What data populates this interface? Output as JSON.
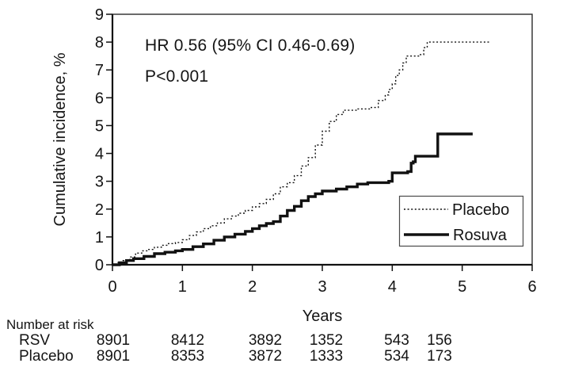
{
  "chart_data": {
    "type": "line",
    "subtype": "kaplan-meier-cumulative-incidence",
    "xlabel": "Years",
    "ylabel": "Cumulative incidence, %",
    "xlim": [
      0,
      6
    ],
    "ylim": [
      0,
      9
    ],
    "x_ticks": [
      0,
      1,
      2,
      3,
      4,
      5,
      6
    ],
    "y_ticks": [
      0,
      1,
      2,
      3,
      4,
      5,
      6,
      7,
      8,
      9
    ],
    "grid": false,
    "annotations": [
      "HR 0.56 (95% CI 0.46-0.69)",
      "P<0.001"
    ],
    "legend": {
      "position": "lower right",
      "entries": [
        {
          "label": "Placebo",
          "style": "dotted"
        },
        {
          "label": "Rosuva",
          "style": "solid"
        }
      ]
    },
    "series": [
      {
        "name": "Placebo",
        "style": "dotted",
        "step": true,
        "points": [
          [
            0,
            0
          ],
          [
            0.07,
            0.08
          ],
          [
            0.15,
            0.15
          ],
          [
            0.25,
            0.28
          ],
          [
            0.33,
            0.42
          ],
          [
            0.42,
            0.5
          ],
          [
            0.5,
            0.55
          ],
          [
            0.6,
            0.63
          ],
          [
            0.7,
            0.7
          ],
          [
            0.8,
            0.76
          ],
          [
            0.9,
            0.8
          ],
          [
            1.0,
            0.9
          ],
          [
            1.1,
            1.05
          ],
          [
            1.2,
            1.18
          ],
          [
            1.3,
            1.3
          ],
          [
            1.4,
            1.4
          ],
          [
            1.5,
            1.5
          ],
          [
            1.6,
            1.65
          ],
          [
            1.7,
            1.75
          ],
          [
            1.8,
            1.85
          ],
          [
            1.9,
            1.95
          ],
          [
            2.0,
            2.08
          ],
          [
            2.1,
            2.2
          ],
          [
            2.2,
            2.35
          ],
          [
            2.3,
            2.55
          ],
          [
            2.4,
            2.8
          ],
          [
            2.5,
            2.95
          ],
          [
            2.6,
            3.2
          ],
          [
            2.7,
            3.55
          ],
          [
            2.8,
            3.85
          ],
          [
            2.9,
            4.3
          ],
          [
            3.0,
            4.8
          ],
          [
            3.1,
            5.15
          ],
          [
            3.2,
            5.4
          ],
          [
            3.3,
            5.55
          ],
          [
            3.5,
            5.6
          ],
          [
            3.7,
            5.65
          ],
          [
            3.8,
            5.9
          ],
          [
            3.9,
            6.1
          ],
          [
            3.95,
            6.3
          ],
          [
            4.0,
            6.5
          ],
          [
            4.05,
            6.8
          ],
          [
            4.1,
            7.0
          ],
          [
            4.15,
            7.25
          ],
          [
            4.2,
            7.5
          ],
          [
            4.4,
            7.55
          ],
          [
            4.45,
            7.8
          ],
          [
            4.5,
            8.0
          ],
          [
            5.4,
            8.0
          ]
        ]
      },
      {
        "name": "Rosuva",
        "style": "solid",
        "step": true,
        "points": [
          [
            0,
            0
          ],
          [
            0.1,
            0.07
          ],
          [
            0.2,
            0.15
          ],
          [
            0.3,
            0.22
          ],
          [
            0.45,
            0.3
          ],
          [
            0.6,
            0.4
          ],
          [
            0.75,
            0.45
          ],
          [
            0.9,
            0.5
          ],
          [
            1.0,
            0.55
          ],
          [
            1.15,
            0.65
          ],
          [
            1.3,
            0.75
          ],
          [
            1.45,
            0.88
          ],
          [
            1.6,
            1.0
          ],
          [
            1.75,
            1.1
          ],
          [
            1.9,
            1.2
          ],
          [
            2.0,
            1.3
          ],
          [
            2.1,
            1.4
          ],
          [
            2.2,
            1.48
          ],
          [
            2.3,
            1.55
          ],
          [
            2.4,
            1.75
          ],
          [
            2.5,
            1.95
          ],
          [
            2.6,
            2.1
          ],
          [
            2.7,
            2.3
          ],
          [
            2.8,
            2.45
          ],
          [
            2.9,
            2.55
          ],
          [
            3.0,
            2.65
          ],
          [
            3.2,
            2.72
          ],
          [
            3.35,
            2.8
          ],
          [
            3.5,
            2.9
          ],
          [
            3.65,
            2.95
          ],
          [
            3.95,
            3.0
          ],
          [
            4.0,
            3.3
          ],
          [
            4.22,
            3.35
          ],
          [
            4.27,
            3.65
          ],
          [
            4.3,
            3.7
          ],
          [
            4.33,
            3.9
          ],
          [
            4.6,
            3.9
          ],
          [
            4.65,
            4.7
          ],
          [
            5.15,
            4.7
          ]
        ]
      }
    ]
  },
  "risk_table": {
    "header": "Number at risk",
    "rows": [
      {
        "label": "RSV",
        "values": [
          "8901",
          "8412",
          "3892",
          "1352",
          "543",
          "156"
        ]
      },
      {
        "label": "Placebo",
        "values": [
          "8901",
          "8353",
          "3872",
          "1333",
          "534",
          "173"
        ]
      }
    ]
  },
  "colors": {
    "line": "#111111",
    "background": "#ffffff",
    "legend_border": "#4a4a4a"
  }
}
